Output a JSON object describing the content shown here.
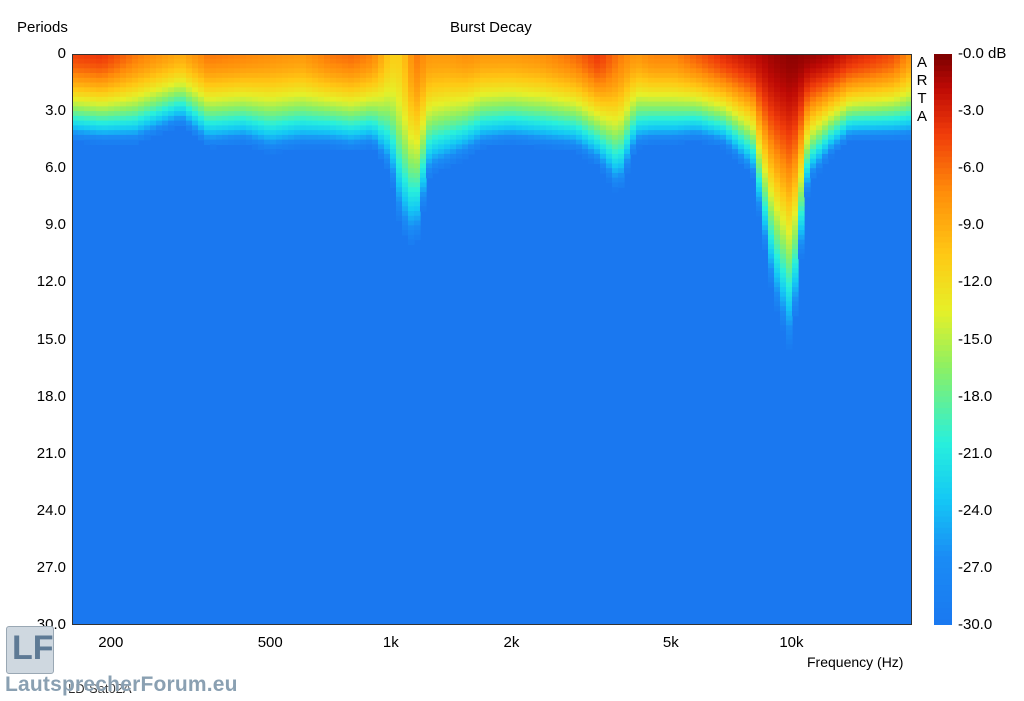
{
  "chart_data": {
    "type": "heatmap",
    "title": "Burst Decay",
    "ylabel": "Periods",
    "xlabel": "Frequency (Hz)",
    "x_scale": "log",
    "xlim": [
      160,
      20000
    ],
    "ylim": [
      0,
      30
    ],
    "y_ticks": [
      "0",
      "3.0",
      "6.0",
      "9.0",
      "12.0",
      "15.0",
      "18.0",
      "21.0",
      "24.0",
      "27.0",
      "30.0"
    ],
    "y_tick_values": [
      0,
      3,
      6,
      9,
      12,
      15,
      18,
      21,
      24,
      27,
      30
    ],
    "x_ticks": [
      "200",
      "500",
      "1k",
      "2k",
      "5k",
      "10k"
    ],
    "x_tick_values": [
      200,
      500,
      1000,
      2000,
      5000,
      10000
    ],
    "colorbar": {
      "range": [
        -30,
        0
      ],
      "unit": "dB",
      "ticks": [
        "-0.0 dB",
        "-3.0",
        "-6.0",
        "-9.0",
        "-12.0",
        "-15.0",
        "-18.0",
        "-21.0",
        "-24.0",
        "-27.0",
        "-30.0"
      ],
      "tick_values": [
        0,
        -3,
        -6,
        -9,
        -12,
        -15,
        -18,
        -21,
        -24,
        -27,
        -30
      ]
    },
    "decay_floor_db": -30,
    "profile": {
      "freq_hz": [
        160,
        190,
        230,
        300,
        350,
        430,
        500,
        600,
        700,
        800,
        900,
        1000,
        1060,
        1150,
        1250,
        1400,
        1550,
        1700,
        2000,
        2400,
        2900,
        3300,
        3700,
        4100,
        4500,
        5100,
        5800,
        6800,
        8000,
        9000,
        10000,
        11000,
        12500,
        14000,
        16000,
        18000,
        20000
      ],
      "peak_db": [
        -4.5,
        -4,
        -6.5,
        -9,
        -6.5,
        -7,
        -7.5,
        -8,
        -6.5,
        -6,
        -7,
        -11,
        -11,
        -6.5,
        -8,
        -8,
        -7.5,
        -8,
        -8,
        -7.5,
        -6,
        -4,
        -6.5,
        -8,
        -7,
        -7,
        -5.5,
        -3.5,
        -2,
        -1,
        -0.5,
        -0.8,
        -1.5,
        -3,
        -4,
        -5,
        -8
      ],
      "decay_periods_to_floor": [
        4.6,
        4.8,
        4.8,
        3.8,
        5.0,
        4.8,
        5.3,
        5.0,
        5.0,
        5.2,
        5.0,
        6.5,
        9.5,
        10.5,
        6.5,
        6.0,
        5.5,
        5.0,
        4.8,
        5.0,
        5.2,
        6.0,
        7.5,
        5.0,
        4.8,
        4.8,
        4.6,
        5.0,
        6.5,
        13.0,
        16.0,
        7.0,
        5.5,
        4.6,
        4.6,
        4.6,
        4.6
      ]
    }
  },
  "labels": {
    "arta": [
      "A",
      "R",
      "T",
      "A"
    ],
    "measurement": "LD-Sat02A",
    "logo_mark": "LF",
    "logo_text": "LautsprecherForum.eu"
  },
  "colors": {
    "background": "#ffffff",
    "floor": "#1a78f0",
    "scale_low": "#1a78f0",
    "scale_high": "#7a0000"
  }
}
